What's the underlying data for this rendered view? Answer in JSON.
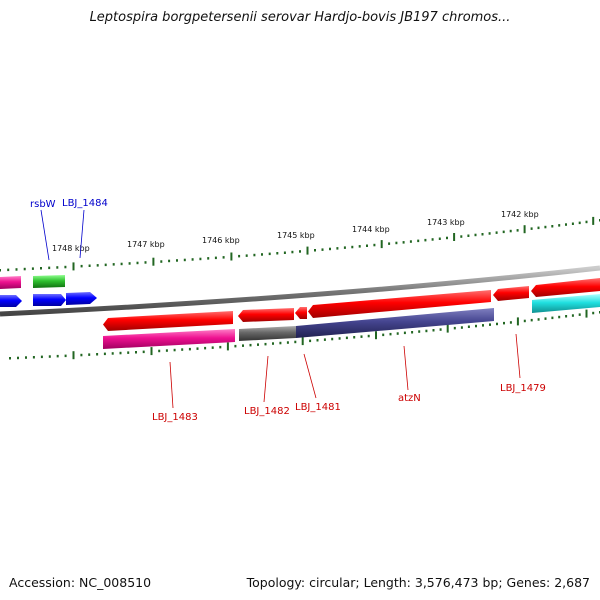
{
  "header": {
    "title": "Leptospira borgpetersenii serovar Hardjo-bovis JB197 chromos..."
  },
  "footer": {
    "accession": "Accession: NC_008510",
    "topology": "Topology: circular; Length: 3,576,473 bp; Genes: 2,687"
  },
  "ticks": [
    "1748 kbp",
    "1747 kbp",
    "1746 kbp",
    "1745 kbp",
    "1744 kbp",
    "1743 kbp",
    "1742 kbp"
  ],
  "gene_labels": [
    {
      "text": "rsbW",
      "color": "#0000cc"
    },
    {
      "text": "LBJ_1484",
      "color": "#0000cc"
    },
    {
      "text": "LBJ_1483",
      "color": "#cc0000"
    },
    {
      "text": "LBJ_1482",
      "color": "#cc0000"
    },
    {
      "text": "LBJ_1481",
      "color": "#cc0000"
    },
    {
      "text": "atzN",
      "color": "#cc0000"
    },
    {
      "text": "LBJ_1479",
      "color": "#cc0000"
    }
  ],
  "colors": {
    "forward_strand": "#e60000",
    "reverse_blue": "#1a1aff",
    "green": "#33bb33",
    "magenta": "#ee2299",
    "cyan": "#22dddd",
    "purple": "#4a4a99",
    "gray": "#666666",
    "backbone": "#888888",
    "tick": "#226622"
  }
}
